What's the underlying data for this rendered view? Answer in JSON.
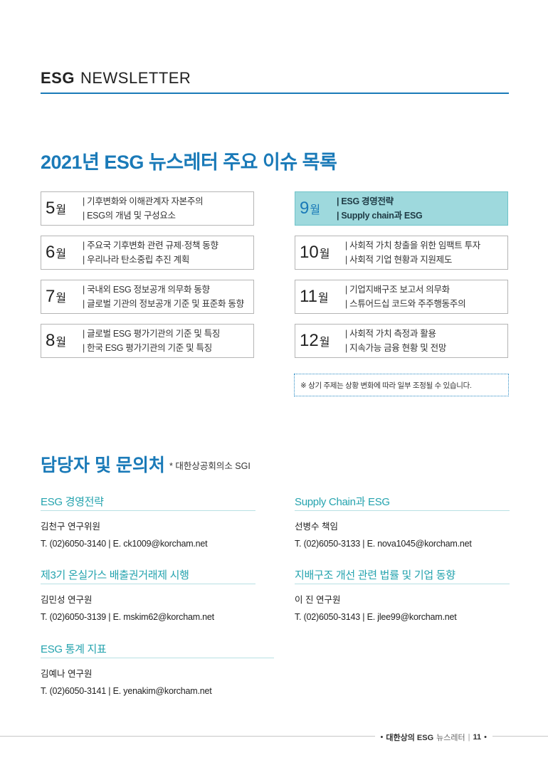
{
  "header": {
    "brand": "ESG",
    "title": "NEWSLETTER"
  },
  "section_title": "2021년 ESG 뉴스레터 주요 이슈 목록",
  "issues_left": [
    {
      "num": "5",
      "unit": "월",
      "topics": [
        "기후변화와 이해관계자 자본주의",
        "ESG의 개념 및 구성요소"
      ]
    },
    {
      "num": "6",
      "unit": "월",
      "topics": [
        "주요국 기후변화 관련 규제·정책 동향",
        "우리나라 탄소중립 추진 계획"
      ]
    },
    {
      "num": "7",
      "unit": "월",
      "topics": [
        "국내외 ESG 정보공개 의무화 동향",
        "글로벌 기관의 정보공개 기준 및 표준화 동향"
      ]
    },
    {
      "num": "8",
      "unit": "월",
      "topics": [
        "글로벌 ESG 평가기관의 기준 및 특징",
        "한국 ESG 평가기관의 기준 및 특징"
      ]
    }
  ],
  "issues_right": [
    {
      "num": "9",
      "unit": "월",
      "topics": [
        "ESG 경영전략",
        "Supply chain과 ESG"
      ]
    },
    {
      "num": "10",
      "unit": "월",
      "topics": [
        "사회적 가치 창출을 위한 임팩트 투자",
        "사회적 기업 현황과 지원제도"
      ]
    },
    {
      "num": "11",
      "unit": "월",
      "topics": [
        "기업지배구조 보고서 의무화",
        "스튜어드십 코드와 주주행동주의"
      ]
    },
    {
      "num": "12",
      "unit": "월",
      "topics": [
        "사회적 가치 측정과 활용",
        "지속가능 금융 현황 및 전망"
      ]
    }
  ],
  "notice": "※ 상기 주제는 상황 변화에 따라 일부 조정될 수 있습니다.",
  "contacts_title": "담당자 및 문의처",
  "contacts_org": "* 대한상공회의소 SGI",
  "contacts": [
    {
      "category": "ESG 경영전략",
      "name": "김천구 연구위원",
      "tel": "T. (02)6050-3140 | E. ck1009@korcham.net"
    },
    {
      "category": "Supply Chain과 ESG",
      "name": "선병수 책임",
      "tel": "T. (02)6050-3133 | E. nova1045@korcham.net"
    },
    {
      "category": "제3기 온실가스 배출권거래제 시행",
      "name": "김민성 연구원",
      "tel": "T. (02)6050-3139 | E. mskim62@korcham.net"
    },
    {
      "category": "지배구조 개선 관련 법률 및 기업 동향",
      "name": "이 진 연구원",
      "tel": "T. (02)6050-3143 | E. jlee99@korcham.net"
    },
    {
      "category": "ESG 통계 지표",
      "name": "김예나 연구원",
      "tel": "T. (02)6050-3141 | E. yenakim@korcham.net"
    }
  ],
  "footer": {
    "publisher": "대한상의 ESG",
    "newsletter": "뉴스레터",
    "page": "11"
  }
}
